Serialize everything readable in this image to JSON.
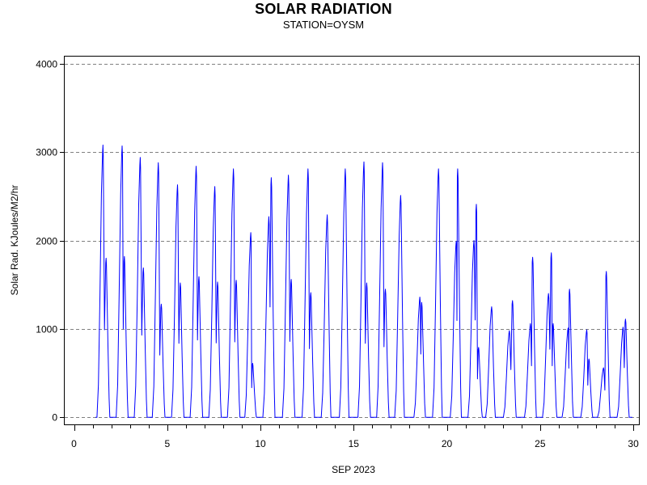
{
  "chart_data": {
    "type": "line",
    "title": "SOLAR RADIATION",
    "subtitle": "STATION=OYSM",
    "xlabel": "SEP 2023",
    "ylabel": "Solar Rad. KJoules/M2/hr",
    "xlim": [
      -0.5,
      30.3
    ],
    "ylim": [
      -80,
      4080
    ],
    "x_ticks": [
      0,
      5,
      10,
      15,
      20,
      25,
      30
    ],
    "y_ticks": [
      0,
      1000,
      2000,
      3000,
      4000
    ],
    "grid": "horizontal-dashed",
    "line_color": "#0000ff",
    "daily_peaks": [
      {
        "day": 1,
        "peaks": [
          [
            1.55,
            3080
          ],
          [
            1.72,
            1800
          ]
        ]
      },
      {
        "day": 2,
        "peaks": [
          [
            2.58,
            3070
          ],
          [
            2.7,
            1820
          ]
        ]
      },
      {
        "day": 3,
        "peaks": [
          [
            3.55,
            2940
          ],
          [
            3.72,
            1690
          ]
        ]
      },
      {
        "day": 4,
        "peaks": [
          [
            4.52,
            2880
          ],
          [
            4.68,
            1280
          ]
        ]
      },
      {
        "day": 5,
        "peaks": [
          [
            5.55,
            2630
          ],
          [
            5.7,
            1520
          ]
        ]
      },
      {
        "day": 6,
        "peaks": [
          [
            6.55,
            2840
          ],
          [
            6.7,
            1590
          ]
        ]
      },
      {
        "day": 7,
        "peaks": [
          [
            7.55,
            2610
          ],
          [
            7.7,
            1530
          ]
        ]
      },
      {
        "day": 8,
        "peaks": [
          [
            8.55,
            2810
          ],
          [
            8.7,
            1550
          ]
        ]
      },
      {
        "day": 9,
        "peaks": [
          [
            9.48,
            2090
          ],
          [
            9.58,
            610
          ]
        ]
      },
      {
        "day": 10,
        "peaks": [
          [
            10.45,
            2270
          ],
          [
            10.58,
            2710
          ]
        ]
      },
      {
        "day": 11,
        "peaks": [
          [
            11.5,
            2740
          ],
          [
            11.65,
            1560
          ]
        ]
      },
      {
        "day": 12,
        "peaks": [
          [
            12.55,
            2810
          ],
          [
            12.7,
            1410
          ]
        ]
      },
      {
        "day": 13,
        "peaks": [
          [
            13.58,
            2290
          ]
        ]
      },
      {
        "day": 14,
        "peaks": [
          [
            14.55,
            2810
          ]
        ]
      },
      {
        "day": 15,
        "peaks": [
          [
            15.55,
            2890
          ],
          [
            15.7,
            1520
          ]
        ]
      },
      {
        "day": 16,
        "peaks": [
          [
            16.55,
            2880
          ],
          [
            16.7,
            1450
          ]
        ]
      },
      {
        "day": 17,
        "peaks": [
          [
            17.52,
            2510
          ]
        ]
      },
      {
        "day": 18,
        "peaks": [
          [
            18.55,
            1360
          ],
          [
            18.65,
            1300
          ]
        ]
      },
      {
        "day": 19,
        "peaks": [
          [
            19.55,
            2810
          ]
        ]
      },
      {
        "day": 20,
        "peaks": [
          [
            20.5,
            1990
          ],
          [
            20.58,
            2810
          ]
        ]
      },
      {
        "day": 21,
        "peaks": [
          [
            21.45,
            2000
          ],
          [
            21.58,
            2410
          ],
          [
            21.7,
            790
          ]
        ]
      },
      {
        "day": 22,
        "peaks": [
          [
            22.4,
            1250
          ]
        ]
      },
      {
        "day": 23,
        "peaks": [
          [
            23.35,
            980
          ],
          [
            23.52,
            1320
          ]
        ]
      },
      {
        "day": 24,
        "peaks": [
          [
            24.48,
            1060
          ],
          [
            24.6,
            1810
          ]
        ]
      },
      {
        "day": 25,
        "peaks": [
          [
            25.45,
            1400
          ],
          [
            25.6,
            1860
          ],
          [
            25.7,
            1060
          ]
        ]
      },
      {
        "day": 26,
        "peaks": [
          [
            26.5,
            1010
          ],
          [
            26.58,
            1450
          ]
        ]
      },
      {
        "day": 27,
        "peaks": [
          [
            27.5,
            990
          ],
          [
            27.62,
            660
          ]
        ]
      },
      {
        "day": 28,
        "peaks": [
          [
            28.4,
            560
          ],
          [
            28.55,
            1650
          ]
        ]
      },
      {
        "day": 29,
        "peaks": [
          [
            29.45,
            1020
          ],
          [
            29.58,
            1110
          ]
        ]
      }
    ]
  }
}
